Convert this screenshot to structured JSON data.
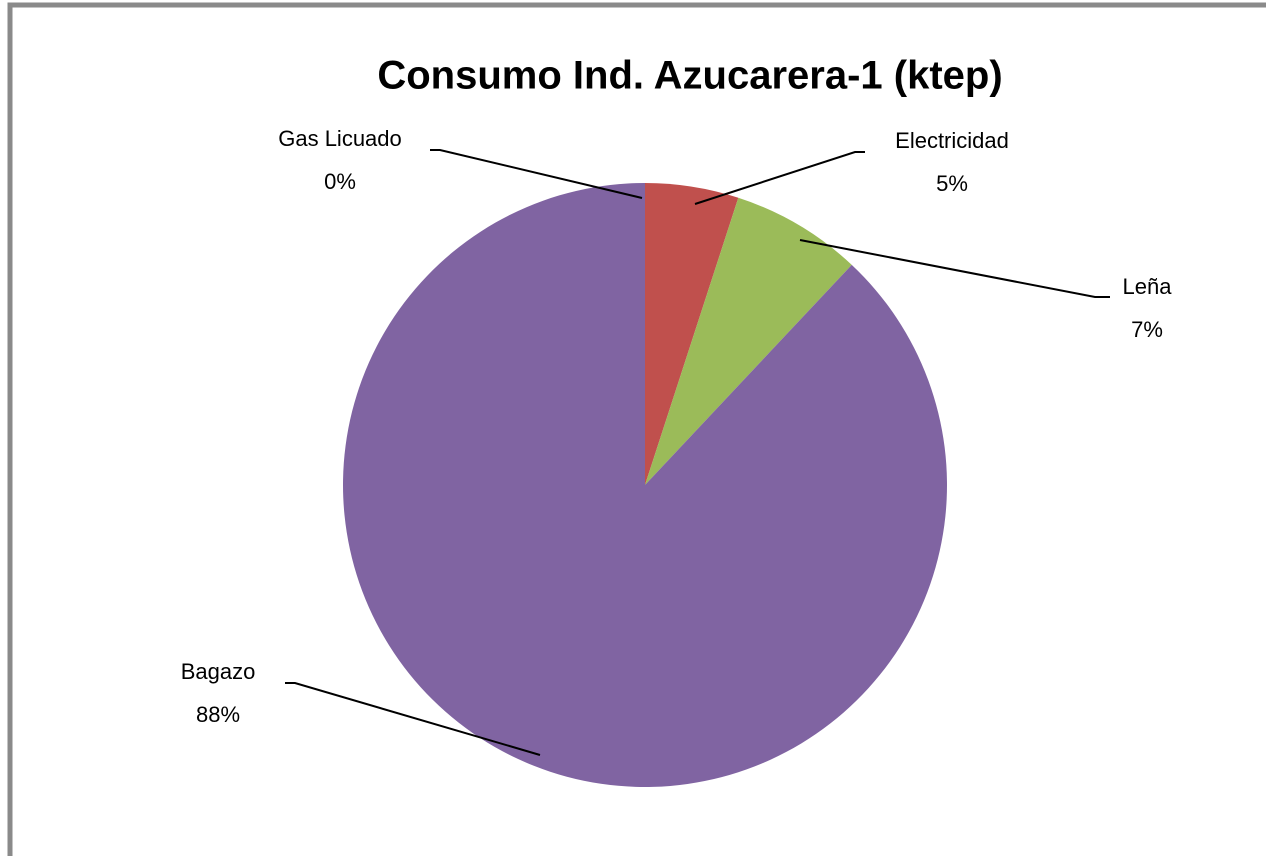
{
  "chart_data": {
    "type": "pie",
    "title": "Consumo Ind. Azucarera-1 (ktep)",
    "categories": [
      "Gas Licuado",
      "Electricidad",
      "Leña",
      "Bagazo"
    ],
    "values": [
      0,
      5,
      7,
      88
    ],
    "value_labels": [
      "0%",
      "5%",
      "7%",
      "88%"
    ],
    "colors": [
      "#4f81bd",
      "#c0504d",
      "#9bbb59",
      "#8064a2"
    ]
  }
}
